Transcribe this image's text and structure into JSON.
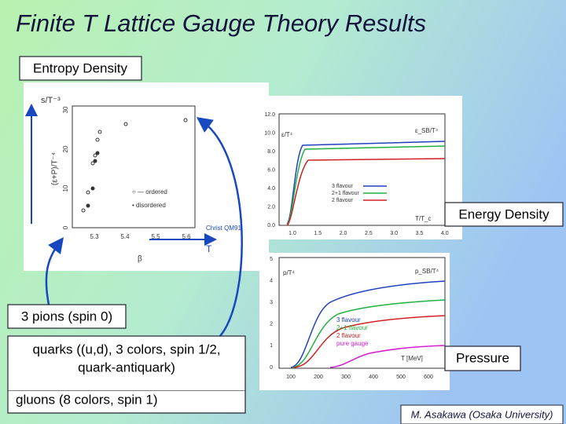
{
  "title": "Finite T Lattice Gauge Theory Results",
  "labels": {
    "entropy": "Entropy Density",
    "energy": "Energy Density",
    "pressure": "Pressure",
    "pions": "3 pions (spin 0)",
    "quarks": [
      "quarks ((u,d), 3 colors, spin 1/2,",
      "quark-antiquark)"
    ],
    "gluons": "gluons (8 colors, spin 1)"
  },
  "footer": "M. Asakawa (Osaka University)",
  "entropy_plot": {
    "ylabel": "s/T⁻³",
    "ylabel2": "(ε+P)/T⁻⁴",
    "xlabel": "β",
    "xlabel2": "T",
    "xticks": [
      "5.3",
      "5.4",
      "5.5",
      "5.6"
    ],
    "yticks": [
      "0",
      "10",
      "20",
      "30"
    ],
    "legend": [
      "○ — ordered",
      "• disordered"
    ],
    "credit": "Christ QM91"
  },
  "energy_plot": {
    "ylabel": "ε/T⁴",
    "sb": "ε_SB/T⁴",
    "xlabel": "T/T_c",
    "yticks": [
      "0.0",
      "2.0",
      "4.0",
      "6.0",
      "8.0",
      "10.0",
      "12.0"
    ],
    "xticks": [
      "1.0",
      "1.5",
      "2.0",
      "2.5",
      "3.0",
      "3.5",
      "4.0"
    ],
    "legend": [
      "3 flavour",
      "2+1 flavour",
      "2 flavour"
    ]
  },
  "pressure_plot": {
    "ylabel": "p/T⁴",
    "sb": "p_SB/T⁴",
    "xlabel": "T [MeV]",
    "yticks": [
      "0",
      "1",
      "2",
      "3",
      "4",
      "5"
    ],
    "xticks": [
      "100",
      "200",
      "300",
      "400",
      "500",
      "600"
    ],
    "legend": [
      "3 flavour",
      "2+1 flavour",
      "2 flavour",
      "pure gauge"
    ]
  }
}
